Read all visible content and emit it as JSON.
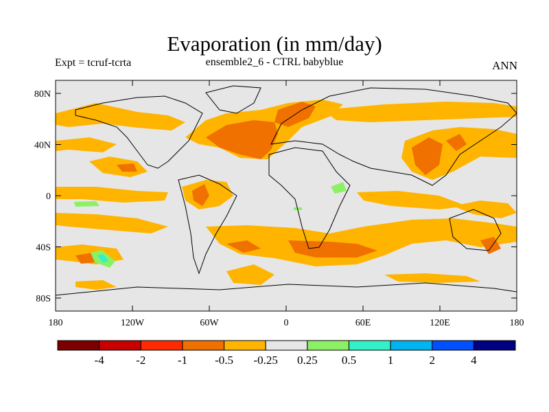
{
  "title": "Evaporation (in mm/day)",
  "subtitle_left": "Expt = tcruf-tcrta",
  "subtitle_center": "ensemble2_6 - CTRL babyblue",
  "subtitle_right": "ANN",
  "map": {
    "lat_ticks": [
      "80N",
      "40N",
      "0",
      "40S",
      "80S"
    ],
    "lon_ticks": [
      "180",
      "120W",
      "60W",
      "0",
      "60E",
      "120E",
      "180"
    ],
    "background_color": "#e6e6e6"
  },
  "colorbar": {
    "colors": [
      "#7d0000",
      "#c80000",
      "#ff2a00",
      "#f07000",
      "#ffb400",
      "#e6e6e6",
      "#8cf064",
      "#32f0c8",
      "#00b4f0",
      "#0050ff",
      "#000082"
    ],
    "labels": [
      "-4",
      "-2",
      "-1",
      "-0.5",
      "-0.25",
      "0.25",
      "0.5",
      "1",
      "2",
      "4"
    ]
  }
}
